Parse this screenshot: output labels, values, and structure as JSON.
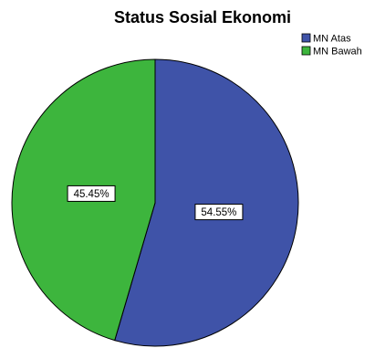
{
  "chart_data": {
    "type": "pie",
    "title": "Status Sosial Ekonomi",
    "categories": [
      "MN Atas",
      "MN Bawah"
    ],
    "values": [
      54.55,
      45.45
    ],
    "data_labels": [
      "54.55%",
      "45.45%"
    ],
    "colors": [
      "#3f53a8",
      "#3db53d"
    ],
    "legend_position": "top-right",
    "start_angle_deg": 0,
    "direction": "clockwise"
  }
}
